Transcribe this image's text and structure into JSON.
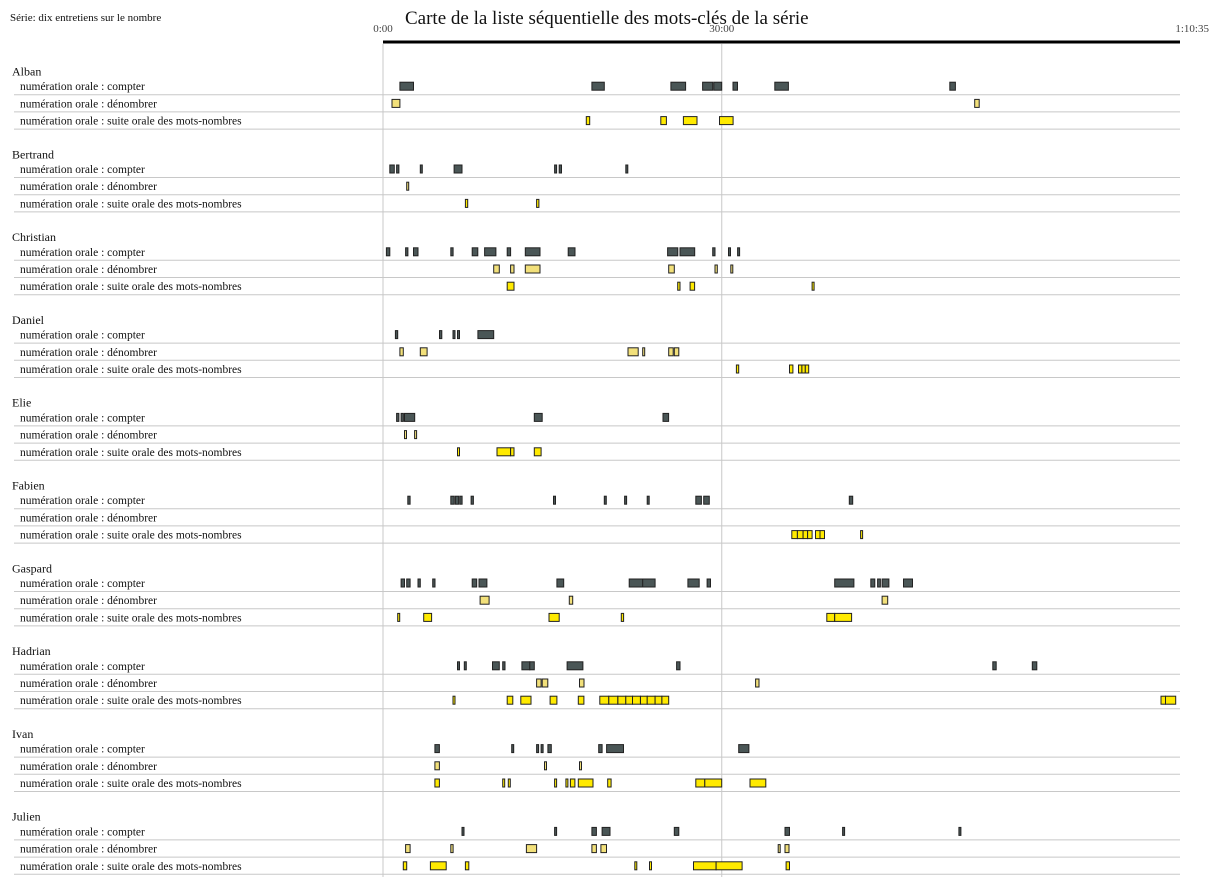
{
  "header": {
    "series_label": "Série: dix entretiens sur le nombre",
    "title": "Carte de la liste séquentielle des mots-clés de la série"
  },
  "colors": {
    "compter": "#4a5656",
    "denombrer": "#f2e07a",
    "suite": "#ffea00",
    "outline": "#222222",
    "grid": "#c8c8c8",
    "axis": "#000000"
  },
  "chart_data": {
    "type": "timeline",
    "title": "Carte de la liste séquentielle des mots-clés de la série",
    "x_unit": "minutes",
    "x_range": [
      0,
      70.583
    ],
    "x_ticks": [
      {
        "value": 0,
        "label": "0:00"
      },
      {
        "value": 30,
        "label": "30:00"
      },
      {
        "value": 70.583,
        "label": "1:10:35"
      }
    ],
    "categories": [
      "numération orale : compter",
      "numération orale : dénombrer",
      "numération orale : suite orale des mots-nombres"
    ],
    "interviews": [
      {
        "name": "Alban",
        "rows": [
          [
            [
              1.5,
              2.7
            ],
            [
              18.5,
              19.6
            ],
            [
              25.5,
              26.8
            ],
            [
              28.3,
              29.2
            ],
            [
              29.3,
              30.0
            ],
            [
              31.0,
              31.4
            ],
            [
              34.7,
              35.9
            ],
            [
              50.2,
              50.7
            ]
          ],
          [
            [
              0.8,
              1.5
            ],
            [
              52.4,
              52.8
            ]
          ],
          [
            [
              18.0,
              18.3
            ],
            [
              24.6,
              25.1
            ],
            [
              26.6,
              27.8
            ],
            [
              29.8,
              31.0
            ]
          ]
        ]
      },
      {
        "name": "Bertrand",
        "rows": [
          [
            [
              0.6,
              1.0
            ],
            [
              1.2,
              1.4
            ],
            [
              3.3,
              3.45
            ],
            [
              6.3,
              7.0
            ],
            [
              15.2,
              15.35
            ],
            [
              15.6,
              15.8
            ],
            [
              21.5,
              21.65
            ]
          ],
          [
            [
              2.1,
              2.25
            ]
          ],
          [
            [
              7.3,
              7.5
            ],
            [
              13.6,
              13.8
            ]
          ]
        ]
      },
      {
        "name": "Christian",
        "rows": [
          [
            [
              0.3,
              0.6
            ],
            [
              2.0,
              2.2
            ],
            [
              2.7,
              3.1
            ],
            [
              6.0,
              6.2
            ],
            [
              7.9,
              8.4
            ],
            [
              9.0,
              10.0
            ],
            [
              11.0,
              11.3
            ],
            [
              12.6,
              13.9
            ],
            [
              16.4,
              17.0
            ],
            [
              25.2,
              26.1
            ],
            [
              26.3,
              27.6
            ],
            [
              29.2,
              29.4
            ],
            [
              30.6,
              30.75
            ],
            [
              31.4,
              31.55
            ]
          ],
          [
            [
              9.8,
              10.3
            ],
            [
              11.3,
              11.6
            ],
            [
              12.6,
              13.9
            ],
            [
              25.3,
              25.8
            ],
            [
              29.4,
              29.6
            ],
            [
              30.8,
              30.95
            ]
          ],
          [
            [
              11.0,
              11.6
            ],
            [
              26.1,
              26.3
            ],
            [
              27.2,
              27.6
            ],
            [
              38.0,
              38.15
            ]
          ]
        ]
      },
      {
        "name": "Daniel",
        "rows": [
          [
            [
              1.1,
              1.3
            ],
            [
              5.0,
              5.2
            ],
            [
              6.2,
              6.35
            ],
            [
              6.6,
              6.75
            ],
            [
              8.4,
              9.8
            ]
          ],
          [
            [
              1.5,
              1.8
            ],
            [
              3.3,
              3.9
            ],
            [
              21.7,
              22.6
            ],
            [
              23.0,
              23.15
            ],
            [
              25.3,
              25.7
            ],
            [
              25.8,
              26.2
            ]
          ],
          [
            [
              31.3,
              31.5
            ],
            [
              36.0,
              36.3
            ],
            [
              36.8,
              37.1
            ],
            [
              37.1,
              37.4
            ],
            [
              37.4,
              37.7
            ]
          ]
        ]
      },
      {
        "name": "Elie",
        "rows": [
          [
            [
              1.2,
              1.4
            ],
            [
              1.6,
              1.8
            ],
            [
              1.9,
              2.8
            ],
            [
              13.4,
              14.1
            ],
            [
              24.8,
              25.3
            ]
          ],
          [
            [
              1.9,
              2.05
            ],
            [
              2.8,
              2.95
            ]
          ],
          [
            [
              6.6,
              6.75
            ],
            [
              10.1,
              11.3
            ],
            [
              11.3,
              11.6
            ],
            [
              13.4,
              14.0
            ]
          ]
        ]
      },
      {
        "name": "Fabien",
        "rows": [
          [
            [
              2.2,
              2.4
            ],
            [
              6.0,
              6.3
            ],
            [
              6.4,
              6.7
            ],
            [
              6.8,
              7.0
            ],
            [
              7.8,
              8.0
            ],
            [
              15.1,
              15.2
            ],
            [
              19.6,
              19.75
            ],
            [
              21.4,
              21.55
            ],
            [
              23.4,
              23.55
            ],
            [
              27.7,
              28.2
            ],
            [
              28.4,
              28.9
            ],
            [
              41.3,
              41.6
            ]
          ],
          [],
          [
            [
              36.2,
              36.7
            ],
            [
              36.7,
              37.2
            ],
            [
              37.2,
              37.6
            ],
            [
              37.6,
              38.0
            ],
            [
              38.3,
              38.7
            ],
            [
              38.7,
              39.1
            ],
            [
              42.3,
              42.45
            ]
          ]
        ]
      },
      {
        "name": "Gaspard",
        "rows": [
          [
            [
              1.6,
              1.9
            ],
            [
              2.1,
              2.4
            ],
            [
              3.1,
              3.3
            ],
            [
              4.4,
              4.6
            ],
            [
              7.9,
              8.3
            ],
            [
              8.5,
              9.2
            ],
            [
              15.4,
              16.0
            ],
            [
              21.8,
              23.0
            ],
            [
              23.0,
              24.1
            ],
            [
              27.0,
              28.0
            ],
            [
              28.7,
              29.0
            ],
            [
              40.0,
              41.7
            ],
            [
              43.2,
              43.55
            ],
            [
              43.8,
              44.05
            ],
            [
              44.2,
              44.8
            ],
            [
              46.1,
              46.9
            ]
          ],
          [
            [
              8.6,
              9.4
            ],
            [
              16.5,
              16.8
            ],
            [
              44.2,
              44.7
            ]
          ],
          [
            [
              1.3,
              1.45
            ],
            [
              3.6,
              4.3
            ],
            [
              14.7,
              15.6
            ],
            [
              21.1,
              21.3
            ],
            [
              39.3,
              40.0
            ],
            [
              40.0,
              41.5
            ]
          ]
        ]
      },
      {
        "name": "Hadrian",
        "rows": [
          [
            [
              6.6,
              6.75
            ],
            [
              7.2,
              7.35
            ],
            [
              9.7,
              10.3
            ],
            [
              10.6,
              10.8
            ],
            [
              12.3,
              13.0
            ],
            [
              13.0,
              13.4
            ],
            [
              16.3,
              17.7
            ],
            [
              26.0,
              26.3
            ],
            [
              54.0,
              54.3
            ],
            [
              57.5,
              57.9
            ]
          ],
          [
            [
              13.6,
              14.0
            ],
            [
              14.1,
              14.6
            ],
            [
              17.4,
              17.8
            ],
            [
              33.0,
              33.3
            ]
          ],
          [
            [
              6.2,
              6.35
            ],
            [
              11.0,
              11.5
            ],
            [
              12.2,
              13.1
            ],
            [
              14.8,
              15.4
            ],
            [
              17.3,
              17.8
            ],
            [
              19.2,
              20.0
            ],
            [
              20.0,
              20.8
            ],
            [
              20.8,
              21.5
            ],
            [
              21.5,
              22.1
            ],
            [
              22.1,
              22.8
            ],
            [
              22.8,
              23.4
            ],
            [
              23.4,
              24.1
            ],
            [
              24.1,
              24.7
            ],
            [
              24.7,
              25.3
            ],
            [
              68.9,
              69.3
            ],
            [
              69.3,
              70.2
            ]
          ]
        ]
      },
      {
        "name": "Ivan",
        "rows": [
          [
            [
              4.6,
              5.0
            ],
            [
              11.4,
              11.55
            ],
            [
              13.6,
              13.75
            ],
            [
              14.0,
              14.15
            ],
            [
              14.6,
              14.9
            ],
            [
              19.1,
              19.4
            ],
            [
              19.8,
              21.3
            ],
            [
              31.5,
              32.4
            ]
          ],
          [
            [
              4.6,
              5.0
            ],
            [
              14.3,
              14.45
            ],
            [
              17.4,
              17.55
            ]
          ],
          [
            [
              4.6,
              5.0
            ],
            [
              10.6,
              10.75
            ],
            [
              11.1,
              11.25
            ],
            [
              15.2,
              15.35
            ],
            [
              16.2,
              16.35
            ],
            [
              16.6,
              17.0
            ],
            [
              17.3,
              18.6
            ],
            [
              19.9,
              20.2
            ],
            [
              27.7,
              28.5
            ],
            [
              28.5,
              30.0
            ],
            [
              32.5,
              33.9
            ]
          ]
        ]
      },
      {
        "name": "Julien",
        "rows": [
          [
            [
              7.0,
              7.15
            ],
            [
              15.2,
              15.35
            ],
            [
              18.5,
              18.9
            ],
            [
              19.4,
              20.1
            ],
            [
              25.8,
              26.2
            ],
            [
              35.6,
              36.0
            ],
            [
              40.7,
              40.85
            ],
            [
              51.0,
              51.15
            ]
          ],
          [
            [
              2.0,
              2.4
            ],
            [
              6.0,
              6.2
            ],
            [
              12.7,
              13.6
            ],
            [
              18.5,
              18.9
            ],
            [
              19.3,
              19.8
            ],
            [
              35.0,
              35.15
            ],
            [
              35.6,
              35.95
            ]
          ],
          [
            [
              1.8,
              2.1
            ],
            [
              4.2,
              5.6
            ],
            [
              7.3,
              7.6
            ],
            [
              22.3,
              22.45
            ],
            [
              23.6,
              23.75
            ],
            [
              27.5,
              29.5
            ],
            [
              29.5,
              31.8
            ],
            [
              35.7,
              36.0
            ]
          ]
        ]
      }
    ]
  }
}
